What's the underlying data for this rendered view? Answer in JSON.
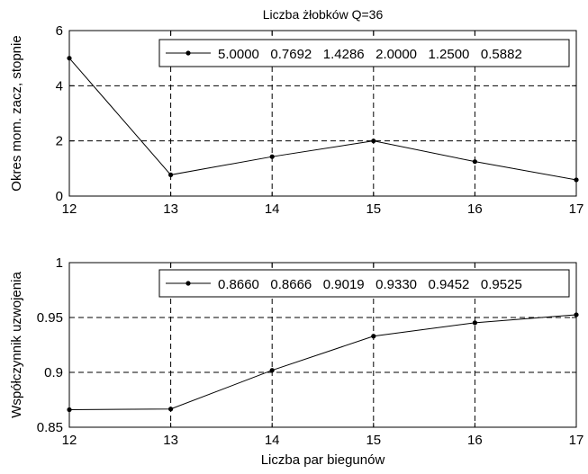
{
  "colors": {
    "background": "#ffffff",
    "line": "#000000",
    "grid": "#000000"
  },
  "chart_data": [
    {
      "type": "line",
      "title": "Liczba żłobków Q=36",
      "xlabel": "",
      "ylabel": "Okres mom. zacz, stopnie",
      "xlim": [
        12,
        17
      ],
      "ylim": [
        0,
        6
      ],
      "xticks": [
        12,
        13,
        14,
        15,
        16,
        17
      ],
      "yticks": [
        0,
        2,
        4,
        6
      ],
      "x_tick_labels": [
        "12",
        "13",
        "14",
        "15",
        "16",
        "17"
      ],
      "y_tick_labels": [
        "0",
        "2",
        "4",
        "6"
      ],
      "grid": true,
      "legend_position": "top-right",
      "series": [
        {
          "name": "5.0000   0.7692   1.4286   2.0000   1.2500   0.5882",
          "x": [
            12,
            13,
            14,
            15,
            16,
            17
          ],
          "y": [
            5.0,
            0.7692,
            1.4286,
            2.0,
            1.25,
            0.5882
          ]
        }
      ]
    },
    {
      "type": "line",
      "title": "",
      "xlabel": "Liczba par biegunów",
      "ylabel": "Współczynnik uzwojenia",
      "xlim": [
        12,
        17
      ],
      "ylim": [
        0.85,
        1
      ],
      "xticks": [
        12,
        13,
        14,
        15,
        16,
        17
      ],
      "yticks": [
        0.85,
        0.9,
        0.95,
        1
      ],
      "x_tick_labels": [
        "12",
        "13",
        "14",
        "15",
        "16",
        "17"
      ],
      "y_tick_labels": [
        "0.85",
        "0.9",
        "0.95",
        "1"
      ],
      "grid": true,
      "legend_position": "top-right",
      "series": [
        {
          "name": "0.8660   0.8666   0.9019   0.9330   0.9452   0.9525",
          "x": [
            12,
            13,
            14,
            15,
            16,
            17
          ],
          "y": [
            0.866,
            0.8666,
            0.9019,
            0.933,
            0.9452,
            0.9525
          ]
        }
      ]
    }
  ]
}
